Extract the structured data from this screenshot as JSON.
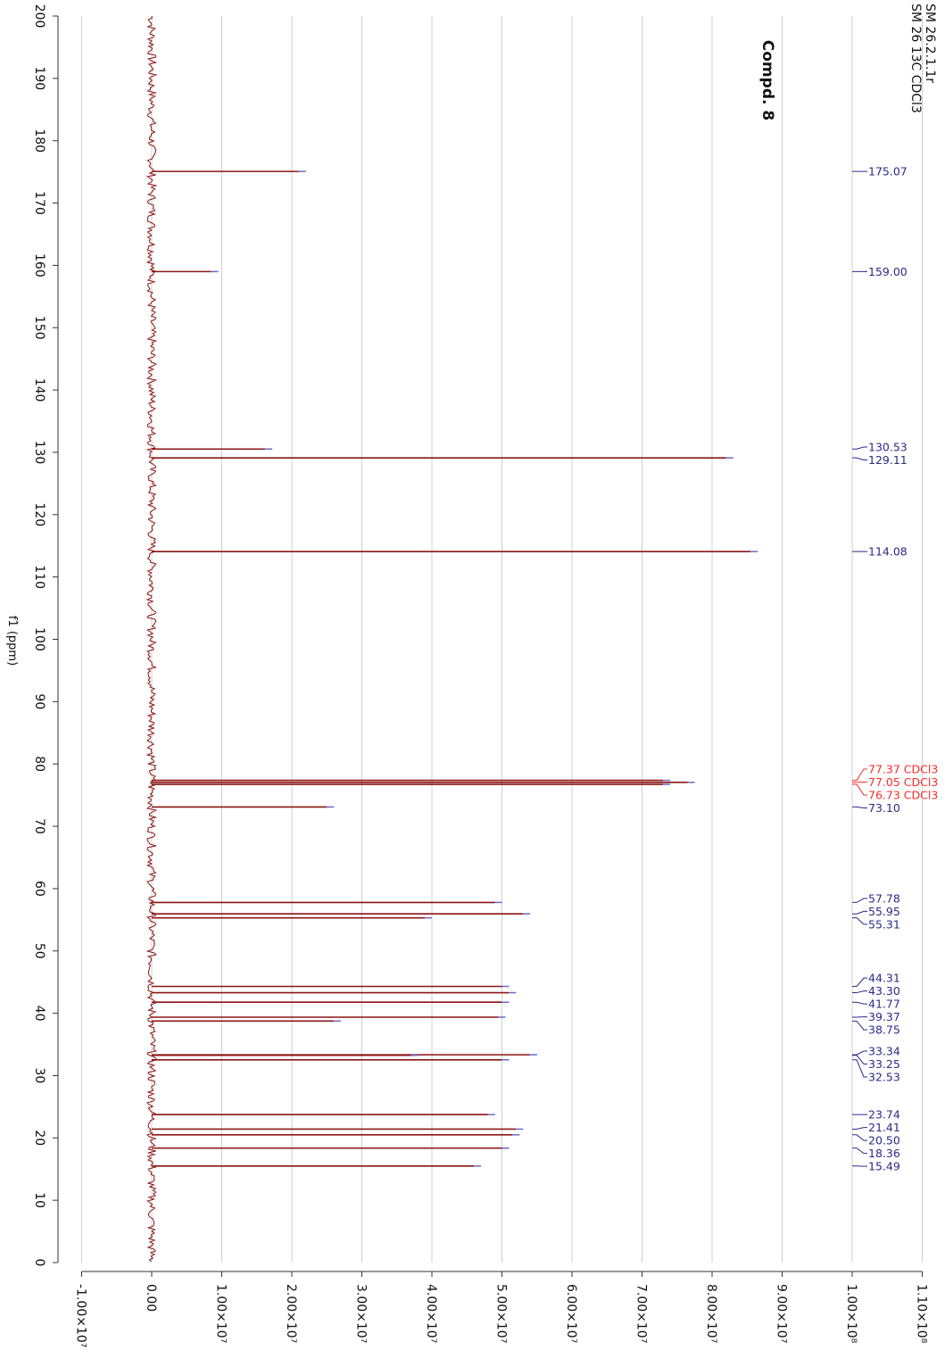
{
  "chart_data": {
    "type": "spectrum",
    "title": "Compd. 8",
    "header_lines": [
      "SM 26.2.1.1r",
      "SM 26 13C CDCl3"
    ],
    "x_axis_label": "f1 (ppm)",
    "x": [
      175.07,
      159.0,
      130.53,
      129.11,
      114.08,
      77.37,
      77.05,
      76.73,
      73.1,
      57.78,
      55.95,
      55.31,
      44.31,
      43.3,
      41.77,
      39.37,
      38.75,
      33.34,
      33.25,
      32.53,
      23.74,
      21.41,
      20.5,
      18.36,
      15.49
    ],
    "x_labels": [
      "175.07",
      "159.00",
      "130.53",
      "129.11",
      "114.08",
      "77.37 CDCl3",
      "77.05 CDCl3",
      "76.73 CDCl3",
      "73.10",
      "57.78",
      "55.95",
      "55.31",
      "44.31",
      "43.30",
      "41.77",
      "39.37",
      "38.75",
      "33.34",
      "33.25",
      "32.53",
      "23.74",
      "21.41",
      "20.50",
      "18.36",
      "15.49"
    ],
    "values": [
      21000000,
      8500000,
      16200000,
      82000000,
      85500000,
      73000000,
      76500000,
      73000000,
      25000000,
      49000000,
      53000000,
      39000000,
      50000000,
      51000000,
      50000000,
      49500000,
      26000000,
      54000000,
      37000000,
      50000000,
      48000000,
      52000000,
      51500000,
      50000000,
      46000000
    ],
    "label_colors": [
      "#2a2a8a",
      "#2a2a8a",
      "#2a2a8a",
      "#2a2a8a",
      "#2a2a8a",
      "#ff2a2a",
      "#ff2a2a",
      "#ff2a2a",
      "#2a2a8a",
      "#2a2a8a",
      "#2a2a8a",
      "#2a2a8a",
      "#2a2a8a",
      "#2a2a8a",
      "#2a2a8a",
      "#2a2a8a",
      "#2a2a8a",
      "#2a2a8a",
      "#2a2a8a",
      "#2a2a8a",
      "#2a2a8a",
      "#2a2a8a",
      "#2a2a8a",
      "#2a2a8a",
      "#2a2a8a"
    ],
    "color": "#8b1414",
    "xlim": [
      0,
      200
    ],
    "xticks": [
      0,
      10,
      20,
      30,
      40,
      50,
      60,
      70,
      80,
      90,
      100,
      110,
      120,
      130,
      140,
      150,
      160,
      170,
      180,
      190,
      200
    ],
    "ylim": [
      -10000000,
      110000000
    ],
    "yticks": [
      {
        "value": -10000000,
        "label": "-1.00×10⁷"
      },
      {
        "value": 0,
        "label": "0.00"
      },
      {
        "value": 10000000,
        "label": "1.00×10⁷"
      },
      {
        "value": 20000000,
        "label": "2.00×10⁷"
      },
      {
        "value": 30000000,
        "label": "3.00×10⁷"
      },
      {
        "value": 40000000,
        "label": "4.00×10⁷"
      },
      {
        "value": 50000000,
        "label": "5.00×10⁷"
      },
      {
        "value": 60000000,
        "label": "6.00×10⁷"
      },
      {
        "value": 70000000,
        "label": "7.00×10⁷"
      },
      {
        "value": 80000000,
        "label": "8.00×10⁷"
      },
      {
        "value": 90000000,
        "label": "9.00×10⁷"
      },
      {
        "value": 100000000,
        "label": "1.00×10⁸"
      },
      {
        "value": 110000000,
        "label": "1.10×10⁸"
      }
    ],
    "grid": true
  }
}
